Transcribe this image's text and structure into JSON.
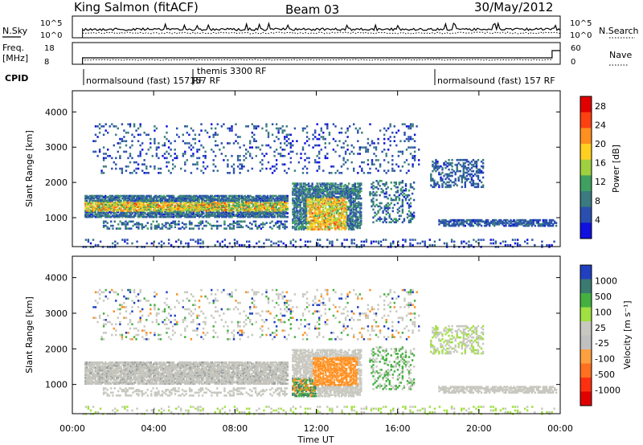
{
  "header": {
    "station": "King Salmon (fitACF)",
    "beam": "Beam 03",
    "date": "30/May/2012"
  },
  "noise_panel": {
    "left_label": "N.Sky",
    "right_label": "N.Search",
    "left_ticks": [
      "10^5",
      "10^0"
    ],
    "right_ticks": [
      "10^5",
      "10^0"
    ]
  },
  "freq_panel": {
    "left_label_1": "Freq.",
    "left_label_2": "[MHz]",
    "right_label": "Nave",
    "left_ticks": [
      "18",
      "8"
    ],
    "right_ticks": [
      "60",
      "0"
    ]
  },
  "cpid": {
    "label": "CPID",
    "segments": [
      {
        "name": "normalsound (fast) 157 RF",
        "start_ut": 0.5,
        "end_ut": 6.0
      },
      {
        "name": "themis 3300 RF",
        "start_ut": 6.0,
        "end_ut": 18.0
      },
      {
        "name": "157 RF",
        "start_ut": 6.0,
        "end_ut": 6.3
      },
      {
        "name": "normalsound (fast) 157 RF",
        "start_ut": 18.0,
        "end_ut": 24.0
      }
    ]
  },
  "chart_data": [
    {
      "type": "heatmap",
      "quantity": "Power",
      "ylabel": "Slant Range [km]",
      "xlabel": "Time UT",
      "xlim": [
        0,
        24
      ],
      "ylim": [
        180,
        4600
      ],
      "yticks": [
        1000,
        2000,
        3000,
        4000
      ],
      "colorbar": {
        "label": "Power [dB]",
        "ticks": [
          4,
          8,
          12,
          16,
          20,
          24,
          28
        ],
        "range": [
          0,
          30
        ]
      }
    },
    {
      "type": "heatmap",
      "quantity": "Velocity",
      "ylabel": "Slant Range [km]",
      "xlabel": "Time UT",
      "xlim": [
        0,
        24
      ],
      "ylim": [
        180,
        4600
      ],
      "yticks": [
        1000,
        2000,
        3000,
        4000
      ],
      "colorbar": {
        "label": "Velocity [m s⁻¹]",
        "ticks": [
          1000,
          500,
          100,
          25,
          -25,
          -100,
          -500,
          -1000
        ]
      }
    }
  ],
  "x_axis": {
    "ticks": [
      "00:00",
      "04:00",
      "08:00",
      "12:00",
      "16:00",
      "20:00",
      "00:00"
    ],
    "label": "Time UT"
  },
  "colors": {
    "power_scale": [
      "#1010e0",
      "#2a4fb0",
      "#3a7a80",
      "#3fa060",
      "#9fd040",
      "#ffd020",
      "#ff9020",
      "#ff4010",
      "#e00000"
    ],
    "velocity_scale": [
      "#2040c0",
      "#3a7a70",
      "#44b040",
      "#a0e040",
      "#c8c8c0",
      "#c0c0c0",
      "#ffa040",
      "#ff7020",
      "#ff3010",
      "#e00000"
    ]
  }
}
